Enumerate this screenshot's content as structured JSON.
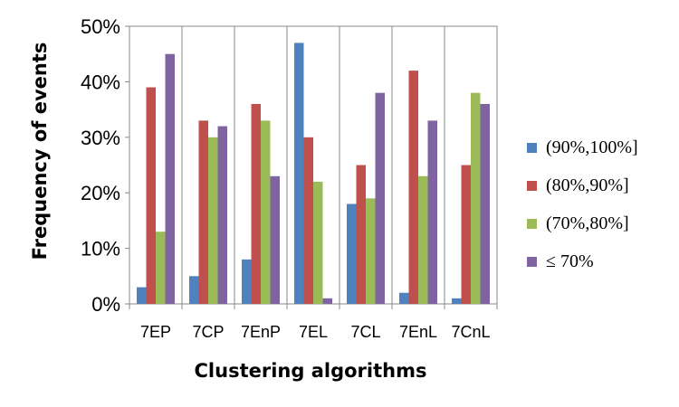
{
  "chart_data": {
    "type": "bar",
    "title": "",
    "xlabel": "Clustering algorithms",
    "ylabel": "Frequency of events",
    "categories": [
      "7EP",
      "7CP",
      "7EnP",
      "7EL",
      "7CL",
      "7EnL",
      "7CnL"
    ],
    "ylim": [
      0,
      50
    ],
    "yticks": [
      "0%",
      "10%",
      "20%",
      "30%",
      "40%",
      "50%"
    ],
    "grid": false,
    "legend_position": "right",
    "series": [
      {
        "name": "(90%,100%]",
        "color": "#4F81BD",
        "values": [
          3,
          5,
          8,
          47,
          18,
          2,
          1
        ]
      },
      {
        "name": "(80%,90%]",
        "color": "#C0504D",
        "values": [
          39,
          33,
          36,
          30,
          25,
          42,
          25
        ]
      },
      {
        "name": "(70%,80%]",
        "color": "#9BBB59",
        "values": [
          13,
          30,
          33,
          22,
          19,
          23,
          38
        ]
      },
      {
        "name": "≤ 70%",
        "color": "#8064A2",
        "values": [
          45,
          32,
          23,
          1,
          38,
          33,
          36
        ]
      }
    ]
  }
}
